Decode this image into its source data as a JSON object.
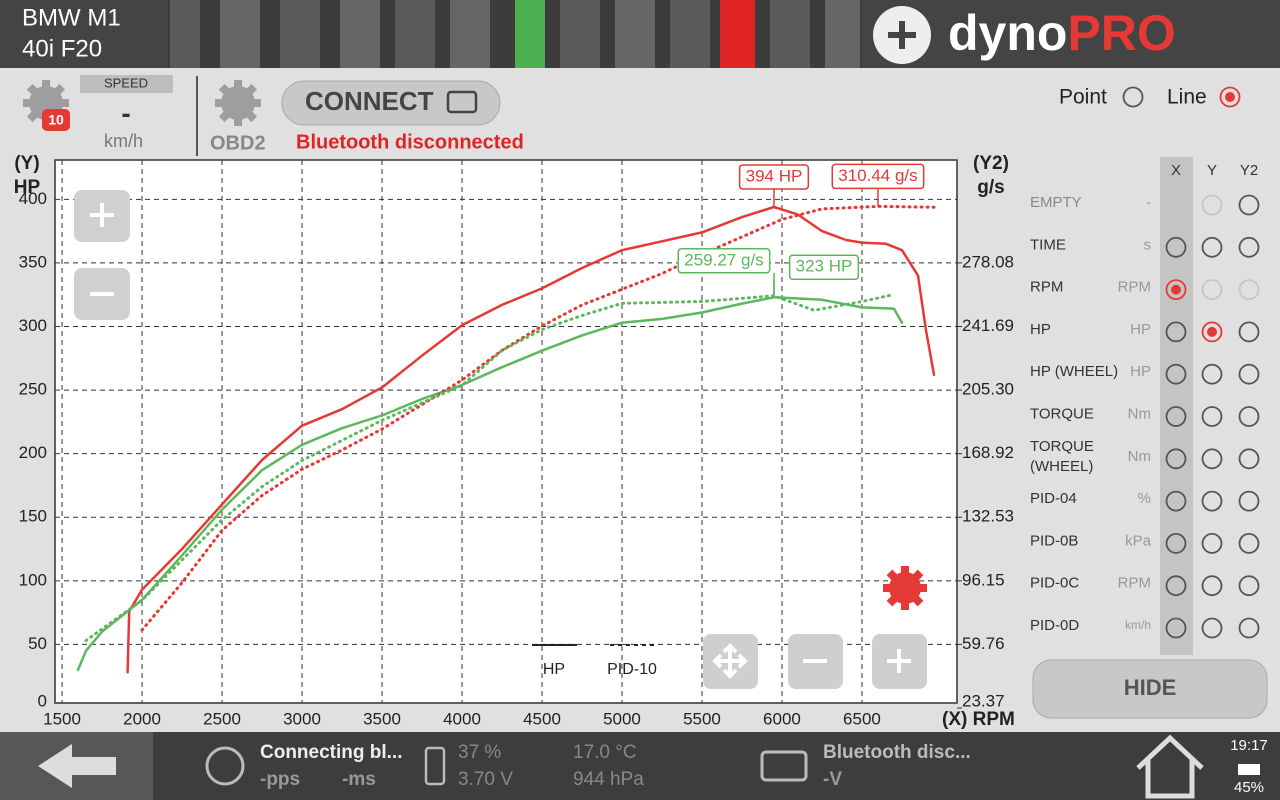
{
  "header": {
    "car": [
      "BMW M1",
      "40i F20"
    ],
    "logo": {
      "word": "dyno",
      "accent": "PRO"
    }
  },
  "toolbar": {
    "speed_label": "SPEED",
    "speed_value": "-",
    "speed_unit": "km/h",
    "badge": "10",
    "obd": "OBD2",
    "connect": "CONNECT",
    "status": "Bluetooth disconnected",
    "modes": [
      {
        "label": "Point",
        "selected": false
      },
      {
        "label": "Line",
        "selected": true
      }
    ]
  },
  "chart_data": {
    "type": "line",
    "y_axis_label": [
      "(Y)",
      "HP"
    ],
    "y2_axis_label": [
      "(Y2)",
      "g/s"
    ],
    "x_axis_label": "(X) RPM",
    "xlim": [
      1456,
      7094
    ],
    "xticks": [
      1500,
      2000,
      2500,
      3000,
      3500,
      4000,
      4500,
      5000,
      5500,
      6000,
      6500
    ],
    "ylim": [
      0,
      427
    ],
    "yticks": [
      0,
      50,
      100,
      150,
      200,
      250,
      300,
      350,
      400
    ],
    "y2lim": [
      23.37,
      334.13
    ],
    "y2ticks": [
      23.37,
      59.76,
      96.15,
      132.53,
      168.92,
      {
        "value": 205.3,
        "label": "205.30"
      },
      241.69,
      278.08
    ],
    "grid": true,
    "series": [
      {
        "name": "HP",
        "style": "solid",
        "runs": [
          {
            "color": "#e53935",
            "x": [
              1910,
              1920,
              2000,
              2250,
              2500,
              2750,
              3000,
              3250,
              3500,
              3750,
              4000,
              4250,
              4500,
              4750,
              5000,
              5250,
              5500,
              5750,
              5950,
              6100,
              6250,
              6400,
              6500,
              6650,
              6750,
              6850,
              6900,
              6950
            ],
            "values": [
              28,
              76,
              93,
              125,
              160,
              195,
              222,
              235,
              252,
              277,
              301,
              317,
              330,
              346,
              360,
              367,
              374,
              386,
              394,
              388,
              375,
              368,
              366,
              365,
              360,
              340,
              297,
              262
            ]
          },
          {
            "color": "#5cb85c",
            "x": [
              1600,
              1650,
              1750,
              2000,
              2250,
              2500,
              2750,
              3000,
              3250,
              3500,
              3750,
              4000,
              4250,
              4500,
              4750,
              5000,
              5250,
              5500,
              5750,
              5950,
              6250,
              6500,
              6700,
              6750
            ],
            "values": [
              30,
              45,
              60,
              85,
              120,
              156,
              187,
              207,
              220,
              230,
              243,
              254,
              268,
              281,
              293,
              303,
              306,
              311,
              318,
              323,
              321,
              315,
              314,
              303
            ]
          }
        ]
      },
      {
        "name": "PID-10",
        "style": "dotted",
        "axis": "y2",
        "runs": [
          {
            "color": "#e53935",
            "x": [
              2000,
              2250,
              2500,
              2750,
              3000,
              3250,
              3500,
              3750,
              4000,
              4250,
              4500,
              4750,
              5000,
              5250,
              5500,
              5750,
              6000,
              6250,
              6600,
              6950
            ],
            "values": [
              68,
              95,
              125,
              145,
              160,
              171,
              183,
              197,
              211,
              228,
              242,
              254,
              263,
              272,
              283,
              293,
              303,
              309,
              310.44,
              310
            ]
          },
          {
            "color": "#5cb85c",
            "x": [
              1650,
              2000,
              2250,
              2500,
              2750,
              3000,
              3500,
              4000,
              4250,
              4500,
              4750,
              5000,
              5500,
              5950,
              6200,
              6500,
              6700
            ],
            "values": [
              62,
              85,
              108,
              131,
              150,
              165,
              188,
              208,
              228,
              240,
              248,
              255,
              256,
              259.27,
              251,
              256,
              260
            ]
          }
        ]
      }
    ],
    "annotations": [
      {
        "text": "394 HP",
        "x": 5950,
        "value": 394,
        "axis": "y",
        "color": "#e53935"
      },
      {
        "text": "310.44 g/s",
        "x": 6600,
        "value": 310.44,
        "axis": "y2",
        "color": "#e53935"
      },
      {
        "text": "259.27 g/s",
        "x": 5950,
        "value": 259.27,
        "axis": "y2",
        "color": "#5cb85c"
      },
      {
        "text": "323 HP",
        "x": 5950,
        "value": 323,
        "axis": "y",
        "color": "#5cb85c"
      }
    ]
  },
  "channels": {
    "columns": [
      "X",
      "Y",
      "Y2"
    ],
    "rows": [
      {
        "name": "EMPTY",
        "unit": "-",
        "states": [
          "none",
          "disabled",
          "off"
        ]
      },
      {
        "name": "TIME",
        "unit": "s",
        "states": [
          "off",
          "off",
          "off"
        ]
      },
      {
        "name": "RPM",
        "unit": "RPM",
        "states": [
          "on",
          "disabled",
          "disabled"
        ]
      },
      {
        "name": "HP",
        "unit": "HP",
        "states": [
          "off",
          "on",
          "off"
        ]
      },
      {
        "name": "HP (WHEEL)",
        "unit": "HP",
        "states": [
          "off",
          "off",
          "off"
        ]
      },
      {
        "name": "TORQUE",
        "unit": "Nm",
        "states": [
          "off",
          "off",
          "off"
        ]
      },
      {
        "name": "TORQUE (WHEEL)",
        "unit": "Nm",
        "states": [
          "off",
          "off",
          "off"
        ]
      },
      {
        "name": "PID-04",
        "unit": "%",
        "states": [
          "off",
          "off",
          "off"
        ]
      },
      {
        "name": "PID-0B",
        "unit": "kPa",
        "states": [
          "off",
          "off",
          "off"
        ]
      },
      {
        "name": "PID-0C",
        "unit": "RPM",
        "states": [
          "off",
          "off",
          "off"
        ]
      },
      {
        "name": "PID-0D",
        "unit": "km/h",
        "states": [
          "off",
          "off",
          "off"
        ]
      }
    ]
  },
  "hide_button": "HIDE",
  "footer": {
    "status": "Connecting bl...",
    "pps": "-pps",
    "ms": "-ms",
    "battery": "37 %",
    "voltage": "3.70 V",
    "temperature": "17.0 °C",
    "pressure": "944 hPa",
    "bt": "Bluetooth disc...",
    "obd_voltage": "-V",
    "time": "19:17",
    "device_battery": "45%"
  }
}
